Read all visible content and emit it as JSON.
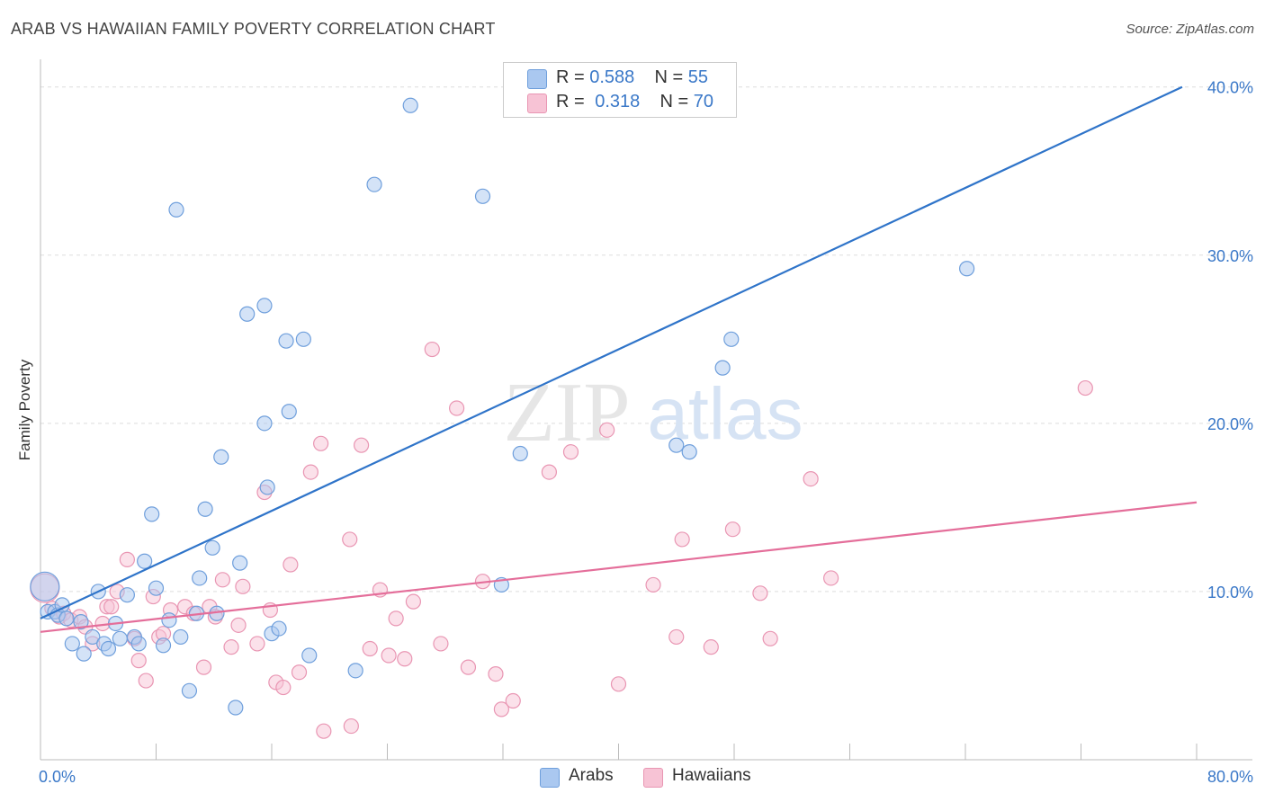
{
  "header": {
    "title": "ARAB VS HAWAIIAN FAMILY POVERTY CORRELATION CHART",
    "source": "Source: ZipAtlas.com"
  },
  "watermark": {
    "zip": "ZIP",
    "atlas": "atlas"
  },
  "legend": {
    "rows": [
      {
        "r_label": "R = ",
        "r_value": "0.588",
        "n_label": "N = ",
        "n_value": "55",
        "color": "#aac8f0",
        "border": "#6f9fdc"
      },
      {
        "r_label": "R = ",
        "r_value": "0.318",
        "n_label": "N = ",
        "n_value": "70",
        "color": "#f7c3d5",
        "border": "#e996b3"
      }
    ]
  },
  "bottom_legend": [
    {
      "label": "Arabs",
      "color": "#aac8f0",
      "border": "#6f9fdc"
    },
    {
      "label": "Hawaiians",
      "color": "#f7c3d5",
      "border": "#e996b3"
    }
  ],
  "colors": {
    "arab_point": "#aac8f0",
    "arab_point_border": "#6f9fdc",
    "arab_line": "#2f74c9",
    "hawaiian_point": "#f7c3d5",
    "hawaiian_point_border": "#e996b3",
    "hawaiian_line": "#e46e9a",
    "tick_label": "#3a78c8",
    "grid": "#dddddd"
  },
  "chart_data": {
    "type": "scatter",
    "title": "ARAB VS HAWAIIAN FAMILY POVERTY CORRELATION CHART",
    "xlabel": "",
    "ylabel": "Family Poverty",
    "xlim": [
      0,
      80
    ],
    "ylim": [
      0,
      41
    ],
    "x_tick_labels": [
      "0.0%",
      "80.0%"
    ],
    "y_ticks": [
      10,
      20,
      30,
      40
    ],
    "y_tick_labels": [
      "10.0%",
      "20.0%",
      "30.0%",
      "40.0%"
    ],
    "grid": true,
    "legend_position": "top-center",
    "series": [
      {
        "name": "Arabs",
        "points": [
          [
            0.3,
            10.3
          ],
          [
            0.5,
            8.8
          ],
          [
            1.0,
            8.8
          ],
          [
            1.2,
            8.6
          ],
          [
            1.5,
            9.2
          ],
          [
            1.8,
            8.4
          ],
          [
            2.2,
            6.9
          ],
          [
            2.8,
            8.2
          ],
          [
            3.0,
            6.3
          ],
          [
            3.6,
            7.3
          ],
          [
            4.0,
            10.0
          ],
          [
            4.4,
            6.9
          ],
          [
            4.7,
            6.6
          ],
          [
            5.2,
            8.1
          ],
          [
            5.5,
            7.2
          ],
          [
            6.0,
            9.8
          ],
          [
            6.5,
            7.3
          ],
          [
            6.8,
            6.9
          ],
          [
            7.2,
            11.8
          ],
          [
            7.7,
            14.6
          ],
          [
            8.0,
            10.2
          ],
          [
            8.5,
            6.8
          ],
          [
            8.9,
            8.3
          ],
          [
            9.4,
            32.7
          ],
          [
            9.7,
            7.3
          ],
          [
            10.3,
            4.1
          ],
          [
            10.8,
            8.7
          ],
          [
            11.0,
            10.8
          ],
          [
            11.4,
            14.9
          ],
          [
            11.9,
            12.6
          ],
          [
            12.2,
            8.7
          ],
          [
            12.5,
            18.0
          ],
          [
            13.8,
            11.7
          ],
          [
            14.3,
            26.5
          ],
          [
            15.5,
            20.0
          ],
          [
            15.5,
            27.0
          ],
          [
            15.7,
            16.2
          ],
          [
            16.0,
            7.5
          ],
          [
            16.5,
            7.8
          ],
          [
            17.0,
            24.9
          ],
          [
            17.2,
            20.7
          ],
          [
            18.2,
            25.0
          ],
          [
            18.6,
            6.2
          ],
          [
            21.8,
            5.3
          ],
          [
            23.1,
            34.2
          ],
          [
            25.6,
            38.9
          ],
          [
            30.6,
            33.5
          ],
          [
            31.9,
            10.4
          ],
          [
            33.2,
            18.2
          ],
          [
            44.0,
            18.7
          ],
          [
            44.9,
            18.3
          ],
          [
            47.2,
            23.3
          ],
          [
            47.8,
            25.0
          ],
          [
            64.1,
            29.2
          ],
          [
            13.5,
            3.1
          ]
        ],
        "trend": {
          "x": [
            0,
            79
          ],
          "y": [
            8.4,
            40.0
          ]
        }
      },
      {
        "name": "Hawaiians",
        "points": [
          [
            0.3,
            10.2
          ],
          [
            0.8,
            9.0
          ],
          [
            1.3,
            8.5
          ],
          [
            1.6,
            8.7
          ],
          [
            2.1,
            8.3
          ],
          [
            2.7,
            8.5
          ],
          [
            3.1,
            7.9
          ],
          [
            3.6,
            6.9
          ],
          [
            4.3,
            8.1
          ],
          [
            4.6,
            9.1
          ],
          [
            4.9,
            9.1
          ],
          [
            5.3,
            10.0
          ],
          [
            6.0,
            11.9
          ],
          [
            6.5,
            7.2
          ],
          [
            6.8,
            5.9
          ],
          [
            7.3,
            4.7
          ],
          [
            7.8,
            9.7
          ],
          [
            8.2,
            7.3
          ],
          [
            8.5,
            7.5
          ],
          [
            9.0,
            8.9
          ],
          [
            10.0,
            9.1
          ],
          [
            10.6,
            8.7
          ],
          [
            11.3,
            5.5
          ],
          [
            11.7,
            9.1
          ],
          [
            12.1,
            8.5
          ],
          [
            12.6,
            10.7
          ],
          [
            13.2,
            6.7
          ],
          [
            13.7,
            8.0
          ],
          [
            14.0,
            10.3
          ],
          [
            15.0,
            6.9
          ],
          [
            15.5,
            15.9
          ],
          [
            15.9,
            8.9
          ],
          [
            16.3,
            4.6
          ],
          [
            16.8,
            4.3
          ],
          [
            17.3,
            11.6
          ],
          [
            17.9,
            5.2
          ],
          [
            18.7,
            17.1
          ],
          [
            19.4,
            18.8
          ],
          [
            19.6,
            1.7
          ],
          [
            21.4,
            13.1
          ],
          [
            21.5,
            2.0
          ],
          [
            22.2,
            18.7
          ],
          [
            22.8,
            6.6
          ],
          [
            23.5,
            10.1
          ],
          [
            24.1,
            6.2
          ],
          [
            24.6,
            8.4
          ],
          [
            25.2,
            6.0
          ],
          [
            25.8,
            9.4
          ],
          [
            27.1,
            24.4
          ],
          [
            27.7,
            6.9
          ],
          [
            28.8,
            20.9
          ],
          [
            29.6,
            5.5
          ],
          [
            30.6,
            10.6
          ],
          [
            31.5,
            5.1
          ],
          [
            31.9,
            3.0
          ],
          [
            32.7,
            3.5
          ],
          [
            35.2,
            17.1
          ],
          [
            36.7,
            18.3
          ],
          [
            39.2,
            19.6
          ],
          [
            40.0,
            4.5
          ],
          [
            42.4,
            10.4
          ],
          [
            44.0,
            7.3
          ],
          [
            44.4,
            13.1
          ],
          [
            46.4,
            6.7
          ],
          [
            47.9,
            13.7
          ],
          [
            49.8,
            9.9
          ],
          [
            50.5,
            7.2
          ],
          [
            53.3,
            16.7
          ],
          [
            54.7,
            10.8
          ],
          [
            72.3,
            22.1
          ]
        ],
        "trend": {
          "x": [
            0,
            80
          ],
          "y": [
            7.6,
            15.3
          ]
        }
      }
    ]
  }
}
